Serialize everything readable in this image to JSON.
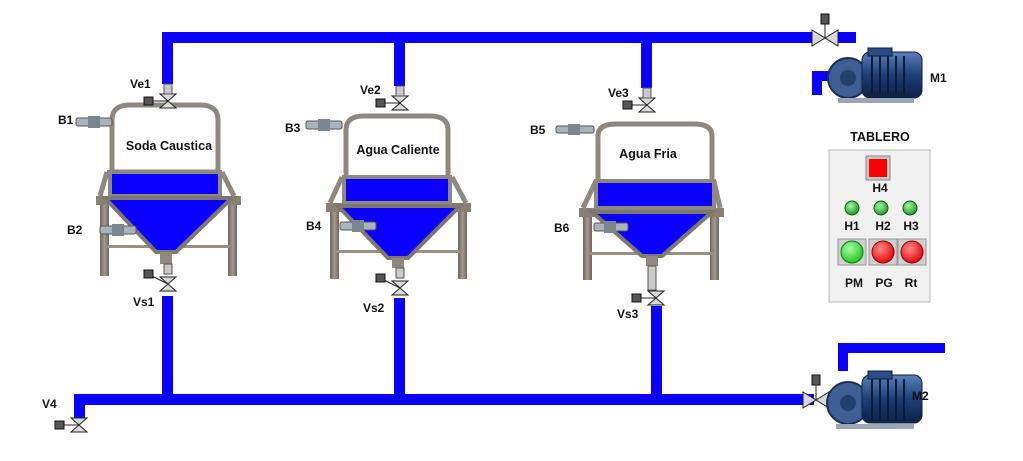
{
  "tanks": [
    {
      "label": "Soda Caustica",
      "inlet_valve": "Ve1",
      "outlet_valve": "Vs1",
      "top_sensor": "B1",
      "bottom_sensor": "B2",
      "level_pct": 35
    },
    {
      "label": "Agua Caliente",
      "inlet_valve": "Ve2",
      "outlet_valve": "Vs2",
      "top_sensor": "B3",
      "bottom_sensor": "B4",
      "level_pct": 40
    },
    {
      "label": "Agua Fria",
      "inlet_valve": "Ve3",
      "outlet_valve": "Vs3",
      "top_sensor": "B5",
      "bottom_sensor": "B6",
      "level_pct": 32
    }
  ],
  "drain_valve": "V4",
  "pumps": [
    {
      "label": "M1",
      "icon": "pump-motor-icon"
    },
    {
      "label": "M2",
      "icon": "pump-motor-icon"
    }
  ],
  "panel": {
    "title": "TABLERO",
    "alarm": {
      "label": "H4",
      "color": "#ff0000"
    },
    "lamps": [
      {
        "label": "H1",
        "color": "#22a622"
      },
      {
        "label": "H2",
        "color": "#22a622"
      },
      {
        "label": "H3",
        "color": "#22a622"
      }
    ],
    "buttons": [
      {
        "label": "PM",
        "color": "#22dd22"
      },
      {
        "label": "PG",
        "color": "#ff1a1a"
      },
      {
        "label": "Rt",
        "color": "#ff1a1a"
      }
    ]
  },
  "colors": {
    "pipe": "#0b00ff",
    "liquid": "#0b00ff",
    "frame": "#8a7f73",
    "tank_wall": "#9a938c"
  }
}
